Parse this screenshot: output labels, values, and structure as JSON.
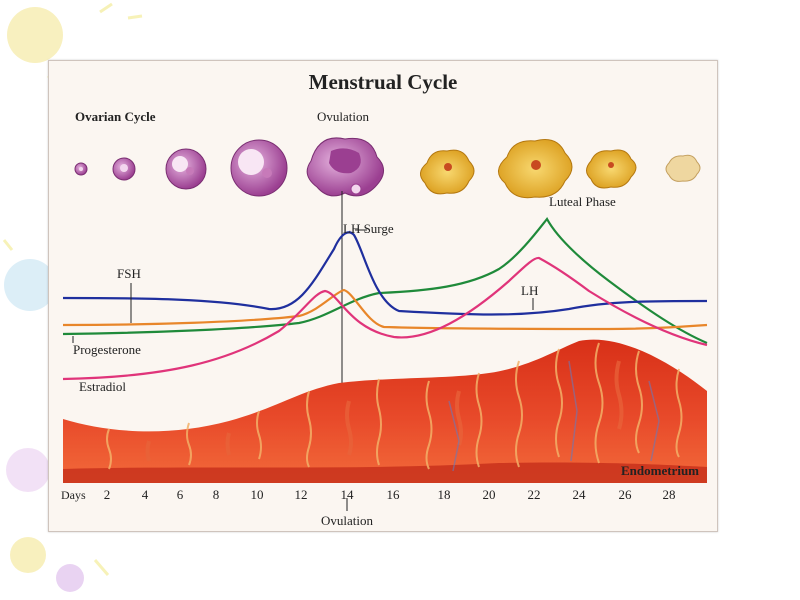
{
  "diagram": {
    "title": "Menstrual Cycle",
    "ovarian_label": "Ovarian Cycle",
    "ovulation_top": "Ovulation",
    "ovulation_bottom": "Ovulation",
    "luteal_label": "Luteal Phase",
    "lh_surge_label": "LH Surge",
    "fsh_label": "FSH",
    "lh_label": "LH",
    "progesterone_label": "Progesterone",
    "estradiol_label": "Estradiol",
    "endometrium_label": "Endometrium",
    "days_label": "Days",
    "days": [
      "2",
      "4",
      "6",
      "8",
      "10",
      "12",
      "14",
      "16",
      "18",
      "20",
      "22",
      "24",
      "26",
      "28"
    ],
    "colors": {
      "lh": "#1f2f9e",
      "fsh": "#e8862a",
      "progesterone": "#1f8a3a",
      "estradiol": "#e0347a",
      "endometrium": "#c8281a",
      "follicle": "#b85aa8",
      "corpus_luteum": "#e8b430"
    }
  }
}
